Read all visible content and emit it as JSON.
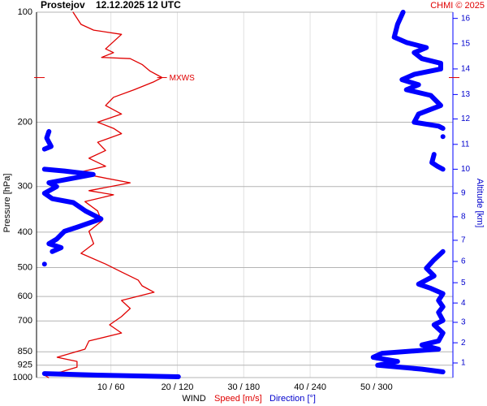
{
  "chart_data": {
    "type": "line",
    "station": "Prostejov",
    "time": "12.12.2025 12 UTC",
    "credit": "CHMI © 2025",
    "ylabel": "Pressure [hPa]",
    "y2label": "Altitude [km]",
    "xlabel": "WIND",
    "log_y": true,
    "grid": true,
    "ylim": [
      100,
      1000
    ],
    "yticks": [
      100,
      200,
      300,
      400,
      500,
      600,
      700,
      850,
      925,
      1000
    ],
    "xlim": [
      -1.2,
      61.5
    ],
    "x2lim": [
      -7.2,
      369
    ],
    "xticks": [
      {
        "value": 10,
        "label": "10 / 60"
      },
      {
        "value": 20,
        "label": "20 / 120"
      },
      {
        "value": 30,
        "label": "30 / 180"
      },
      {
        "value": 40,
        "label": "40 / 240"
      },
      {
        "value": 50,
        "label": "50 / 300"
      }
    ],
    "y2ticks": [
      1,
      2,
      3,
      4,
      5,
      6,
      7,
      8,
      9,
      10,
      11,
      12,
      13,
      14,
      15,
      16
    ],
    "y2tick_pressure": [
      912,
      803,
      706,
      625,
      550,
      481,
      421,
      363,
      313,
      269,
      230,
      196,
      168,
      143,
      122,
      104
    ],
    "mxws": {
      "label": "MXWS",
      "pressure": 151,
      "speed": 17.7
    },
    "series": [
      {
        "name": "Speed [m/s]",
        "color": "#e00000",
        "axis": "x",
        "pressure": [
          100,
          108,
          112,
          115,
          126,
          129,
          133,
          134,
          139,
          145,
          151,
          155,
          163,
          171,
          180,
          190,
          200,
          208,
          215,
          227,
          239,
          251,
          264,
          275,
          293,
          308,
          316,
          330,
          350,
          373,
          398,
          430,
          457,
          489,
          514,
          541,
          561,
          584,
          615,
          647,
          681,
          717,
          755,
          794,
          836,
          880,
          903,
          936,
          965,
          985,
          1000
        ],
        "values": [
          4.3,
          5.5,
          7.4,
          11.6,
          9.2,
          10.4,
          8.6,
          12.9,
          14.7,
          15.9,
          17.7,
          16.5,
          13.5,
          10.4,
          9.2,
          11.6,
          8.0,
          10.4,
          11.6,
          8.0,
          9.2,
          6.7,
          9.2,
          4.9,
          12.9,
          6.7,
          10.4,
          6.1,
          8.0,
          8.6,
          6.7,
          7.4,
          5.5,
          9.2,
          11.6,
          14.1,
          14.7,
          16.5,
          11.6,
          12.9,
          11.6,
          9.8,
          11.6,
          6.7,
          6.1,
          1.9,
          4.9,
          4.9,
          2.5,
          0.0,
          0.6
        ]
      },
      {
        "name": "Direction [°]",
        "color": "#0000ff",
        "axis": "x2",
        "pressure": [
          100,
          108,
          117,
          121,
          125,
          129,
          134,
          138,
          143,
          148,
          153,
          158,
          163,
          169,
          180,
          190,
          200,
          205,
          208,
          null,
          219,
          null,
          245,
          258,
          264,
          269,
          null,
          212,
          221,
          233,
          237,
          null,
          269,
          272,
          278,
          293,
          300,
          313,
          324,
          332,
          350,
          368,
          388,
          398,
          418,
          430,
          441,
          452,
          null,
          489,
          null,
          452,
          476,
          502,
          527,
          555,
          570,
          589,
          615,
          640,
          663,
          698,
          717,
          755,
          794,
          814,
          836,
          858,
          880,
          903,
          925,
          948,
          965,
          null,
          975,
          985,
          995
        ],
        "values": [
          324,
          319,
          316,
          327,
          345,
          334,
          341,
          358,
          358,
          334,
          323,
          338,
          327,
          349,
          358,
          338,
          334,
          356,
          360,
          null,
          360,
          null,
          352,
          350,
          355,
          360,
          null,
          4,
          2,
          6,
          0,
          null,
          0,
          18,
          44,
          4,
          11,
          0,
          7,
          26,
          37,
          51,
          29,
          18,
          11,
          4,
          15,
          7,
          null,
          0,
          null,
          360,
          352,
          345,
          352,
          338,
          349,
          360,
          356,
          360,
          356,
          360,
          352,
          360,
          356,
          341,
          356,
          305,
          297,
          319,
          301,
          341,
          360,
          null,
          0,
          48,
          121
        ]
      }
    ]
  }
}
